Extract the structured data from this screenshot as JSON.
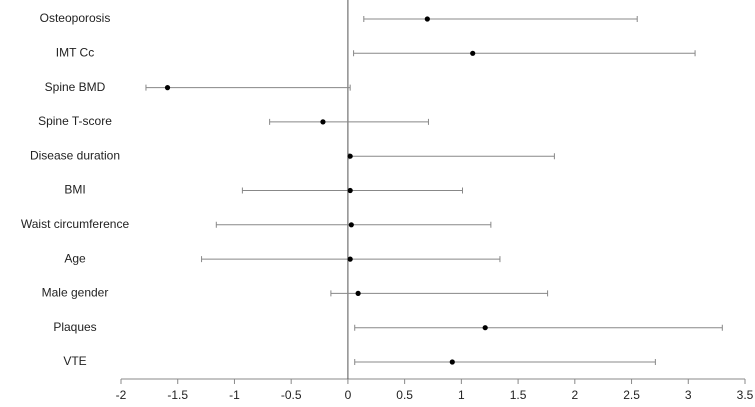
{
  "chart_data": {
    "type": "forest",
    "categories": [
      "Osteoporosis",
      "IMT Cc",
      "Spine BMD",
      "Spine T-score",
      "Disease duration",
      "BMI",
      "Waist circumference",
      "Age",
      "Male gender",
      "Plaques",
      "VTE"
    ],
    "values": [
      0.7,
      1.1,
      -1.59,
      -0.22,
      0.02,
      0.02,
      0.03,
      0.02,
      0.09,
      1.21,
      0.92
    ],
    "lower": [
      0.14,
      0.05,
      -1.78,
      -0.69,
      0.01,
      -0.93,
      -1.16,
      -1.29,
      -0.15,
      0.06,
      0.06
    ],
    "upper": [
      2.55,
      3.06,
      0.02,
      0.71,
      1.82,
      1.01,
      1.26,
      1.34,
      1.76,
      3.3,
      2.71
    ],
    "color": "#000000",
    "xlim": [
      -2,
      3.5
    ],
    "xticks": [
      -2,
      -1.5,
      -1,
      -0.5,
      0,
      0.5,
      1,
      1.5,
      2,
      2.5,
      3,
      3.5
    ]
  }
}
